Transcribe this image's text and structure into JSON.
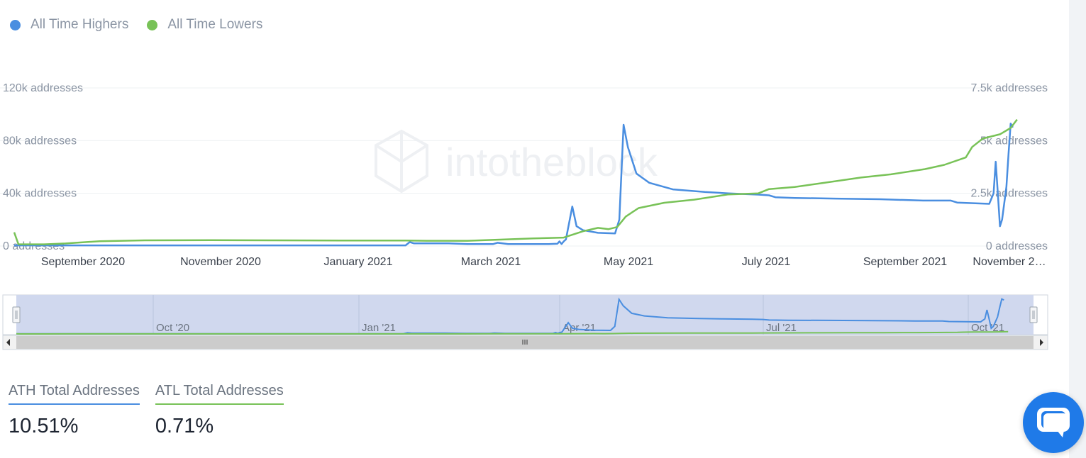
{
  "chart_data": {
    "type": "line",
    "legend": [
      {
        "name": "All Time Highers",
        "color": "#4a8ee0"
      },
      {
        "name": "All Time Lowers",
        "color": "#78c257"
      }
    ],
    "legend_placement": "top-left",
    "grid": true,
    "x_range": [
      "2020-08-01",
      "2021-11-25"
    ],
    "x_ticks": [
      "September 2020",
      "November 2020",
      "January 2021",
      "March 2021",
      "May 2021",
      "July 2021",
      "September 2021",
      "November 2…"
    ],
    "y_left": {
      "min": 0,
      "max": 120000,
      "ticks": [
        "0 addresses",
        "40k addresses",
        "80k addresses",
        "120k addresses"
      ]
    },
    "y_right": {
      "min": 0,
      "max": 7500,
      "ticks": [
        "0 addresses",
        "2.5k addresses",
        "5k addresses",
        "7.5k addresses"
      ]
    },
    "series": [
      {
        "name": "All Time Highers",
        "axis": "left",
        "color": "#4a8ee0",
        "points": [
          [
            "2020-08-01",
            500
          ],
          [
            "2020-09-01",
            500
          ],
          [
            "2020-10-01",
            500
          ],
          [
            "2020-11-01",
            500
          ],
          [
            "2020-12-01",
            500
          ],
          [
            "2021-01-01",
            500
          ],
          [
            "2021-01-31",
            500
          ],
          [
            "2021-02-02",
            3000
          ],
          [
            "2021-02-04",
            2000
          ],
          [
            "2021-02-20",
            2000
          ],
          [
            "2021-03-01",
            1500
          ],
          [
            "2021-03-13",
            1500
          ],
          [
            "2021-03-15",
            2500
          ],
          [
            "2021-03-20",
            1500
          ],
          [
            "2021-04-08",
            1500
          ],
          [
            "2021-04-12",
            1700
          ],
          [
            "2021-04-13",
            3500
          ],
          [
            "2021-04-14",
            1500
          ],
          [
            "2021-04-15",
            3500
          ],
          [
            "2021-04-16",
            5000
          ],
          [
            "2021-04-19",
            30000
          ],
          [
            "2021-04-21",
            15000
          ],
          [
            "2021-04-24",
            12000
          ],
          [
            "2021-05-01",
            10000
          ],
          [
            "2021-05-09",
            9500
          ],
          [
            "2021-05-11",
            20000
          ],
          [
            "2021-05-13",
            92000
          ],
          [
            "2021-05-15",
            75000
          ],
          [
            "2021-05-19",
            55000
          ],
          [
            "2021-05-25",
            48000
          ],
          [
            "2021-06-05",
            43000
          ],
          [
            "2021-06-20",
            41000
          ],
          [
            "2021-07-01",
            40000
          ],
          [
            "2021-07-15",
            39000
          ],
          [
            "2021-07-20",
            38500
          ],
          [
            "2021-07-23",
            37000
          ],
          [
            "2021-08-01",
            36500
          ],
          [
            "2021-08-20",
            36000
          ],
          [
            "2021-09-10",
            35500
          ],
          [
            "2021-09-30",
            34500
          ],
          [
            "2021-10-13",
            34500
          ],
          [
            "2021-10-16",
            33000
          ],
          [
            "2021-10-31",
            32000
          ],
          [
            "2021-11-02",
            40000
          ],
          [
            "2021-11-03",
            64000
          ],
          [
            "2021-11-04",
            40000
          ],
          [
            "2021-11-05",
            15000
          ],
          [
            "2021-11-06",
            20000
          ],
          [
            "2021-11-08",
            45000
          ],
          [
            "2021-11-09",
            70000
          ],
          [
            "2021-11-10",
            93000
          ],
          [
            "2021-11-11",
            90000
          ]
        ]
      },
      {
        "name": "All Time Lowers",
        "axis": "right",
        "color": "#78c257",
        "points": [
          [
            "2020-08-01",
            650
          ],
          [
            "2020-08-03",
            80
          ],
          [
            "2020-08-15",
            80
          ],
          [
            "2020-08-25",
            120
          ],
          [
            "2020-09-10",
            230
          ],
          [
            "2020-10-01",
            270
          ],
          [
            "2020-11-01",
            280
          ],
          [
            "2020-12-01",
            270
          ],
          [
            "2021-01-01",
            260
          ],
          [
            "2021-01-31",
            260
          ],
          [
            "2021-02-10",
            250
          ],
          [
            "2021-03-01",
            250
          ],
          [
            "2021-03-15",
            300
          ],
          [
            "2021-04-01",
            360
          ],
          [
            "2021-04-15",
            400
          ],
          [
            "2021-04-24",
            700
          ],
          [
            "2021-05-01",
            860
          ],
          [
            "2021-05-06",
            800
          ],
          [
            "2021-05-10",
            900
          ],
          [
            "2021-05-14",
            1400
          ],
          [
            "2021-05-20",
            1800
          ],
          [
            "2021-06-01",
            2050
          ],
          [
            "2021-06-15",
            2200
          ],
          [
            "2021-07-01",
            2450
          ],
          [
            "2021-07-15",
            2500
          ],
          [
            "2021-07-20",
            2700
          ],
          [
            "2021-08-01",
            2800
          ],
          [
            "2021-08-15",
            3000
          ],
          [
            "2021-09-01",
            3250
          ],
          [
            "2021-09-15",
            3400
          ],
          [
            "2021-10-01",
            3650
          ],
          [
            "2021-10-10",
            3850
          ],
          [
            "2021-10-20",
            4200
          ],
          [
            "2021-10-23",
            4700
          ],
          [
            "2021-10-28",
            5100
          ],
          [
            "2021-11-05",
            5300
          ],
          [
            "2021-11-10",
            5600
          ],
          [
            "2021-11-13",
            6000
          ]
        ]
      }
    ],
    "navigator_labels": [
      "Oct '20",
      "Jan '21",
      "Apr '21",
      "Jul '21",
      "Oct '21"
    ]
  },
  "watermark": "intotheblock",
  "stats": [
    {
      "label": "ATH Total Addresses",
      "value": "10.51%",
      "color": "#4a8ee0"
    },
    {
      "label": "ATL Total Addresses",
      "value": "0.71%",
      "color": "#78c257"
    }
  ],
  "chat_icon": "chat-bubble-icon"
}
